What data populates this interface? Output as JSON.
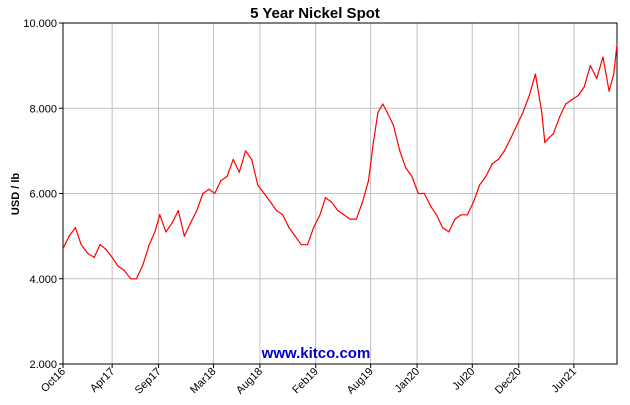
{
  "chart_data": {
    "type": "line",
    "title": "5 Year Nickel Spot",
    "ylabel": "USD / lb",
    "xlabel": "",
    "ylim": [
      2.0,
      10.0
    ],
    "yticks": [
      {
        "value": 2.0,
        "label": "2.000"
      },
      {
        "value": 4.0,
        "label": "4.000"
      },
      {
        "value": 6.0,
        "label": "6.000"
      },
      {
        "value": 8.0,
        "label": "8.000"
      },
      {
        "value": 10.0,
        "label": "10.000"
      }
    ],
    "xlim": [
      "2016-10-21",
      "2021-10-21"
    ],
    "xticks": [
      {
        "date": "2016-10-01",
        "label": "Oct16"
      },
      {
        "date": "2017-04-01",
        "label": "Apr17"
      },
      {
        "date": "2017-09-01",
        "label": "Sep17"
      },
      {
        "date": "2018-03-01",
        "label": "Mar18"
      },
      {
        "date": "2018-08-01",
        "label": "Aug18"
      },
      {
        "date": "2019-02-01",
        "label": "Feb19"
      },
      {
        "date": "2019-08-01",
        "label": "Aug19"
      },
      {
        "date": "2020-01-01",
        "label": "Jan20"
      },
      {
        "date": "2020-07-01",
        "label": "Jul20"
      },
      {
        "date": "2020-12-01",
        "label": "Dec20"
      },
      {
        "date": "2021-06-01",
        "label": "Jun21"
      }
    ],
    "grid": true,
    "series": [
      {
        "color": "#ff0000",
        "x": [
          "2016-10-21",
          "2016-11-10",
          "2016-12-01",
          "2016-12-20",
          "2017-01-10",
          "2017-02-01",
          "2017-02-20",
          "2017-03-10",
          "2017-04-01",
          "2017-04-20",
          "2017-05-10",
          "2017-06-01",
          "2017-06-20",
          "2017-07-10",
          "2017-08-01",
          "2017-08-20",
          "2017-09-05",
          "2017-09-25",
          "2017-10-15",
          "2017-11-05",
          "2017-11-25",
          "2017-12-15",
          "2018-01-05",
          "2018-01-25",
          "2018-02-15",
          "2018-03-05",
          "2018-03-25",
          "2018-04-15",
          "2018-05-05",
          "2018-05-25",
          "2018-06-15",
          "2018-07-05",
          "2018-07-25",
          "2018-08-15",
          "2018-09-05",
          "2018-09-25",
          "2018-10-15",
          "2018-11-05",
          "2018-11-25",
          "2018-12-15",
          "2019-01-05",
          "2019-01-25",
          "2019-02-15",
          "2019-03-05",
          "2019-03-25",
          "2019-04-15",
          "2019-05-05",
          "2019-05-25",
          "2019-06-15",
          "2019-07-05",
          "2019-07-25",
          "2019-08-10",
          "2019-08-25",
          "2019-09-10",
          "2019-09-25",
          "2019-10-15",
          "2019-11-05",
          "2019-11-25",
          "2019-12-15",
          "2020-01-05",
          "2020-01-25",
          "2020-02-15",
          "2020-03-05",
          "2020-03-25",
          "2020-04-15",
          "2020-05-05",
          "2020-05-25",
          "2020-06-15",
          "2020-07-05",
          "2020-07-25",
          "2020-08-15",
          "2020-09-05",
          "2020-09-25",
          "2020-10-15",
          "2020-11-05",
          "2020-11-25",
          "2020-12-15",
          "2021-01-05",
          "2021-01-25",
          "2021-02-15",
          "2021-02-25",
          "2021-03-10",
          "2021-03-25",
          "2021-04-15",
          "2021-05-05",
          "2021-05-25",
          "2021-06-15",
          "2021-07-05",
          "2021-07-25",
          "2021-08-15",
          "2021-09-05",
          "2021-09-25",
          "2021-10-10",
          "2021-10-21"
        ],
        "values": [
          4.7,
          5.0,
          5.2,
          4.8,
          4.6,
          4.5,
          4.8,
          4.7,
          4.5,
          4.3,
          4.2,
          4.0,
          4.0,
          4.3,
          4.8,
          5.1,
          5.5,
          5.1,
          5.3,
          5.6,
          5.0,
          5.3,
          5.6,
          6.0,
          6.1,
          6.0,
          6.3,
          6.4,
          6.8,
          6.5,
          7.0,
          6.8,
          6.2,
          6.0,
          5.8,
          5.6,
          5.5,
          5.2,
          5.0,
          4.8,
          4.8,
          5.2,
          5.5,
          5.9,
          5.8,
          5.6,
          5.5,
          5.4,
          5.4,
          5.8,
          6.3,
          7.2,
          7.9,
          8.1,
          7.9,
          7.6,
          7.0,
          6.6,
          6.4,
          6.0,
          6.0,
          5.7,
          5.5,
          5.2,
          5.1,
          5.4,
          5.5,
          5.5,
          5.8,
          6.2,
          6.4,
          6.7,
          6.8,
          7.0,
          7.3,
          7.6,
          7.9,
          8.3,
          8.8,
          7.9,
          7.2,
          7.3,
          7.4,
          7.8,
          8.1,
          8.2,
          8.3,
          8.5,
          9.0,
          8.7,
          9.2,
          8.4,
          8.8,
          9.5
        ]
      }
    ]
  },
  "watermark": {
    "text": "www.kitco.com",
    "color": "#0000cc"
  }
}
